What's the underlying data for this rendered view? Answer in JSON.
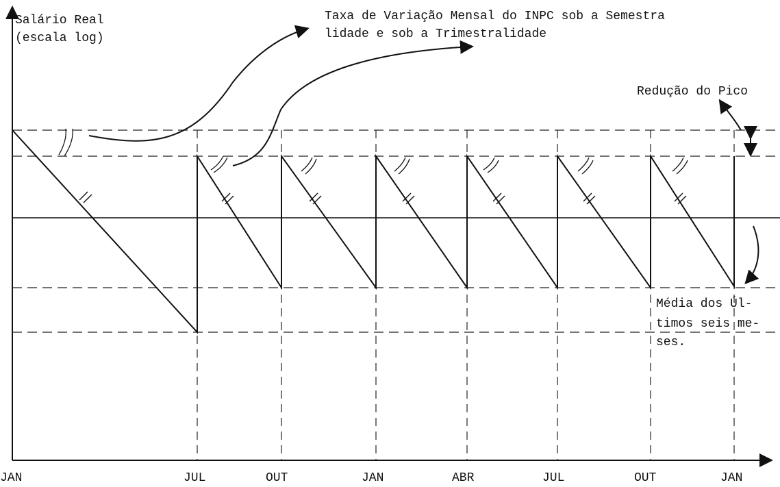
{
  "y_axis": {
    "title": [
      "Salário Real",
      "(escala log)"
    ]
  },
  "x_axis": {
    "labels": [
      "JAN",
      "JUL",
      "OUT",
      "JAN",
      "ABR",
      "JUL",
      "OUT",
      "JAN"
    ]
  },
  "annotations": {
    "top": [
      "Taxa de Variação Mensal do INPC sob a Semestra",
      "lidade e sob a Trimestralidade"
    ],
    "peak": "Redução do Pico",
    "average": [
      "Média dos Úl-",
      "timos seis me-",
      "ses."
    ]
  }
}
